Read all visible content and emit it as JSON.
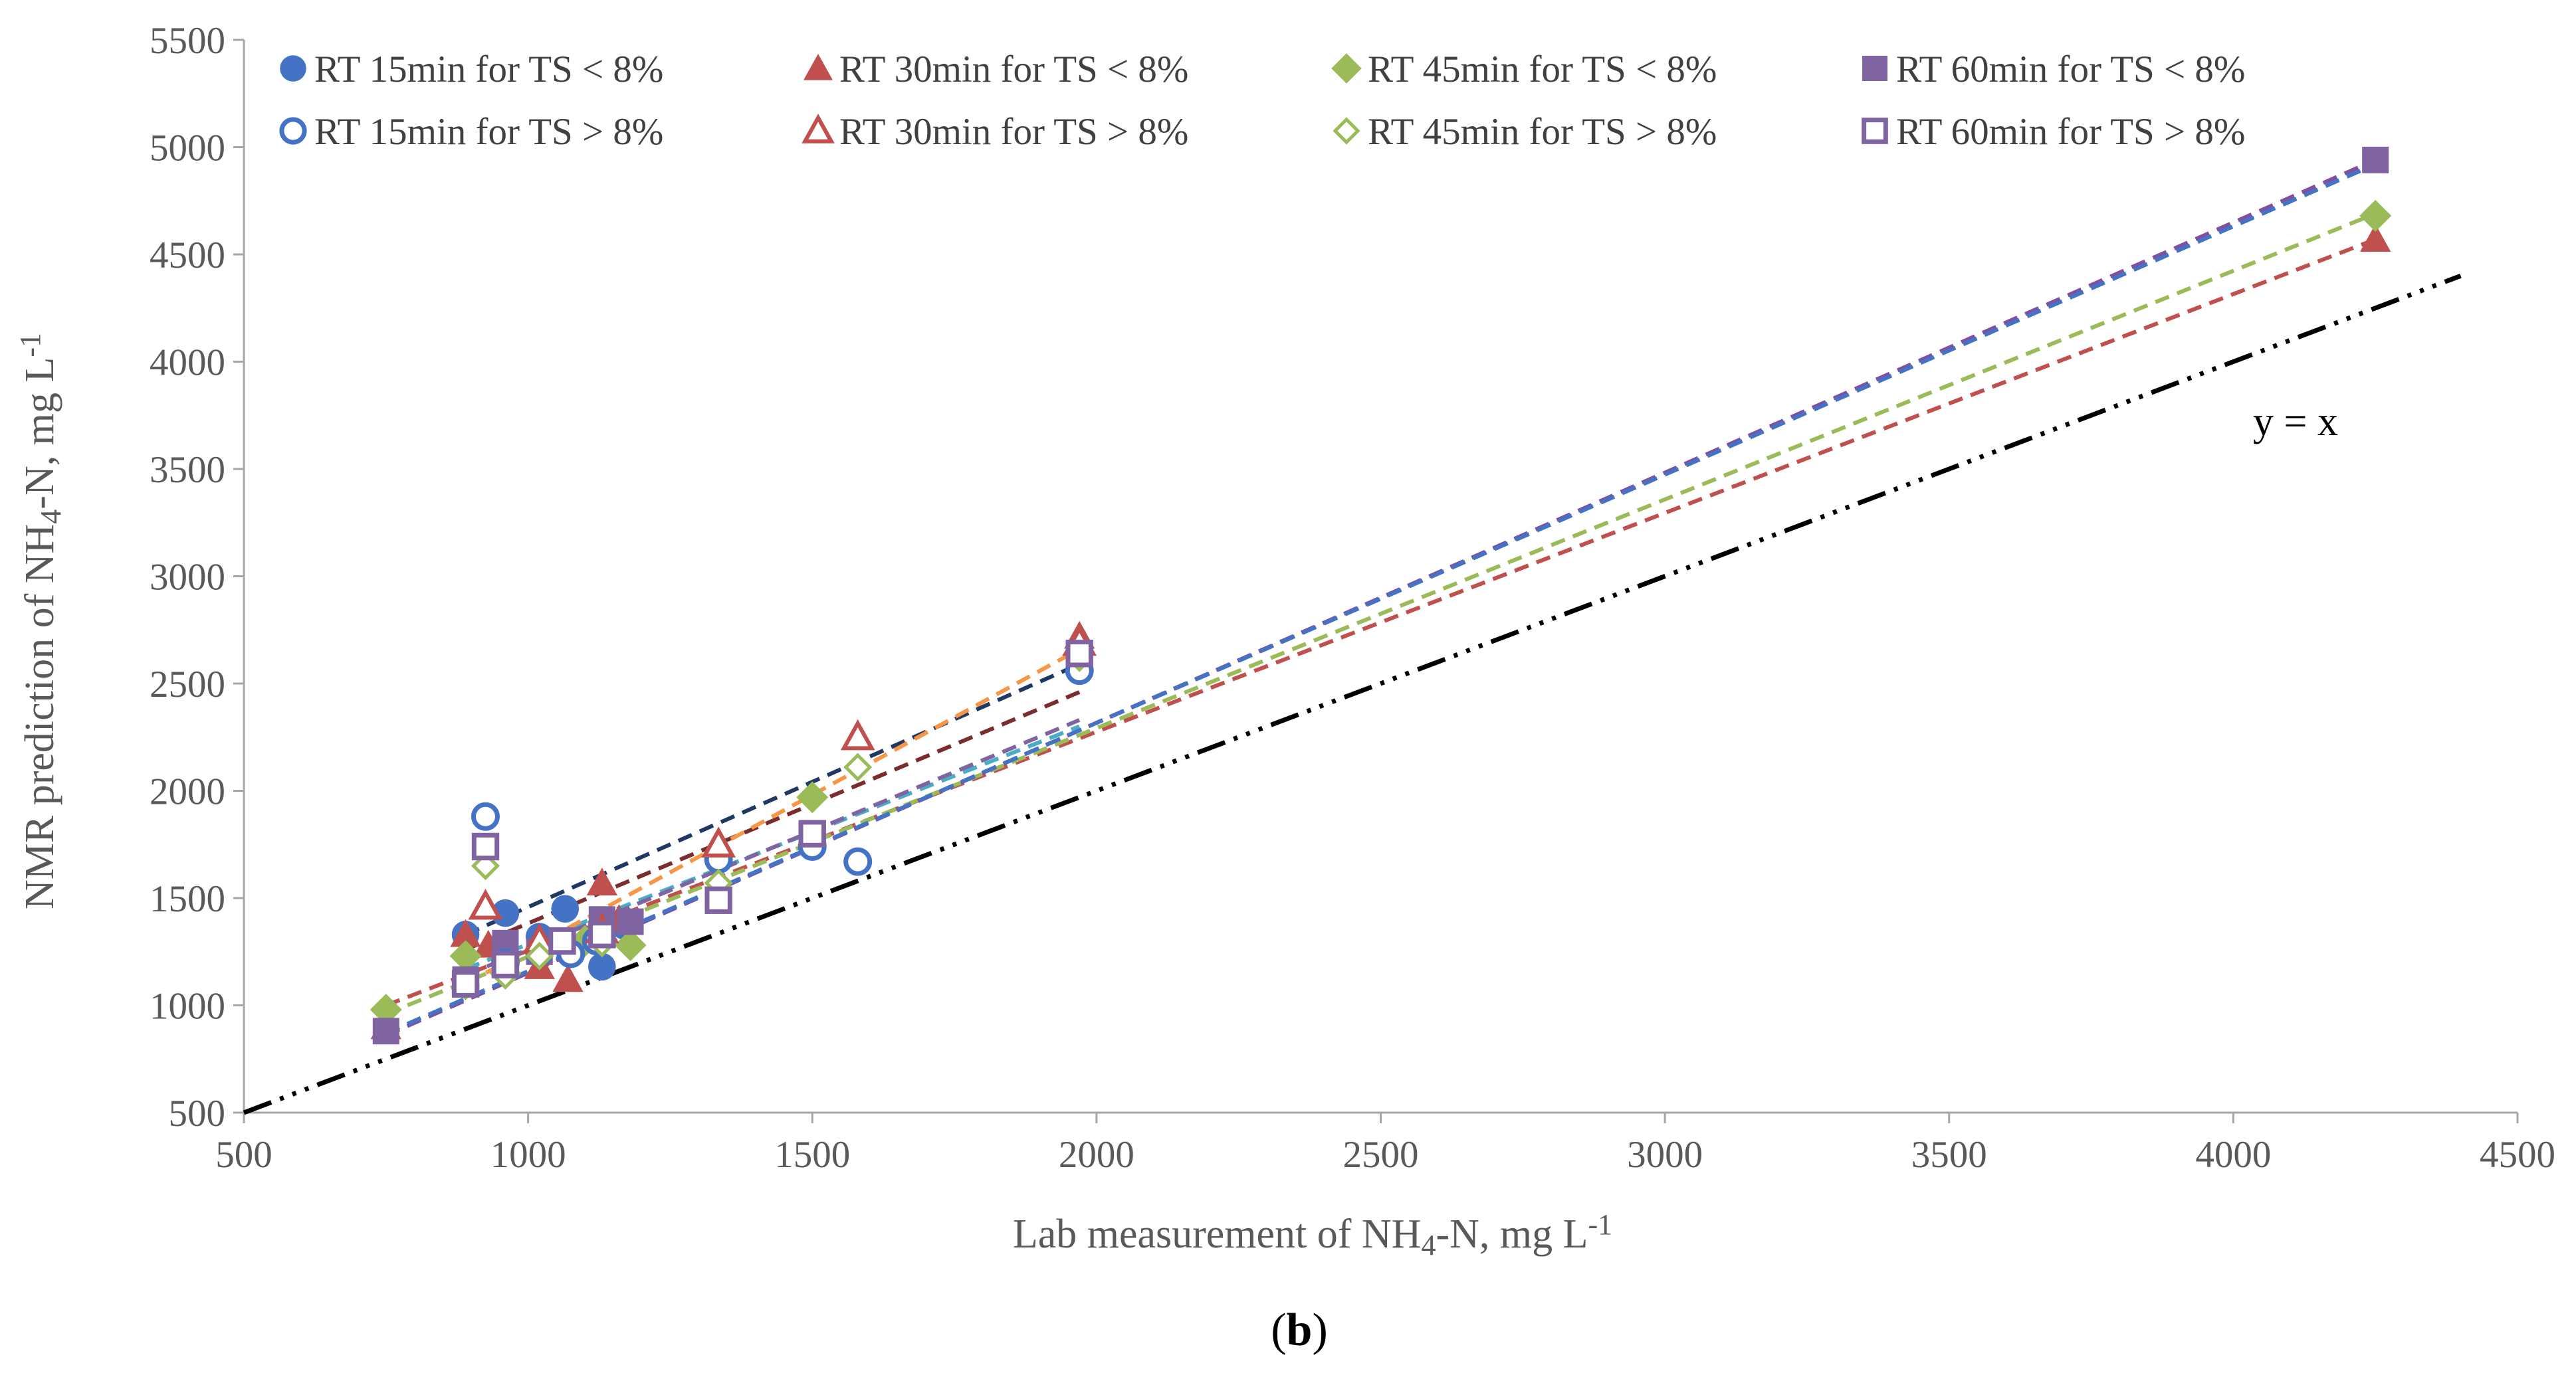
{
  "chart_data": {
    "type": "scatter",
    "title": "",
    "xlabel_parts": [
      "Lab measurement of NH",
      "4",
      "-N, mg L",
      "-1"
    ],
    "ylabel_parts": [
      "NMR prediction of NH",
      "4",
      "-N, mg L",
      "-1"
    ],
    "xlim": [
      500,
      4500
    ],
    "ylim": [
      500,
      5500
    ],
    "xticks": [
      500,
      1000,
      1500,
      2000,
      2500,
      3000,
      3500,
      4000,
      4500
    ],
    "yticks": [
      500,
      1000,
      1500,
      2000,
      2500,
      3000,
      3500,
      4000,
      4500,
      5000,
      5500
    ],
    "grid": false,
    "legend_position": "top",
    "panel_label_parts": [
      "(",
      "b",
      ")"
    ],
    "identity_line": {
      "label": "y = x",
      "color": "#000000",
      "from": [
        500,
        500
      ],
      "to": [
        4400,
        4400
      ]
    },
    "series": [
      {
        "name": "RT 15min for TS < 8%",
        "marker": "circle",
        "filled": true,
        "color": "#4472C4",
        "x": [
          890,
          960,
          1020,
          1065,
          1130,
          1170
        ],
        "y": [
          1330,
          1430,
          1320,
          1450,
          1180,
          1370
        ],
        "trend": {
          "color": "#1F3864",
          "x": [
            890,
            1970
          ],
          "y": [
            1330,
            2590
          ]
        }
      },
      {
        "name": "RT 30min for TS < 8%",
        "marker": "triangle",
        "filled": true,
        "color": "#C0504D",
        "x": [
          750,
          890,
          930,
          1020,
          1070,
          1130,
          1160,
          1970,
          4250
        ],
        "y": [
          900,
          1330,
          1280,
          1180,
          1120,
          1570,
          1400,
          2720,
          4570
        ],
        "trend": {
          "color": "#C0504D",
          "x": [
            750,
            4250
          ],
          "y": [
            1000,
            4570
          ]
        }
      },
      {
        "name": "RT 45min for TS < 8%",
        "marker": "diamond",
        "filled": true,
        "color": "#9BBB59",
        "x": [
          750,
          890,
          960,
          1020,
          1100,
          1180,
          1500,
          4250
        ],
        "y": [
          980,
          1230,
          1150,
          1250,
          1300,
          1280,
          1970,
          4680
        ],
        "trend": {
          "color": "#9BBB59",
          "x": [
            750,
            4250
          ],
          "y": [
            960,
            4690
          ]
        }
      },
      {
        "name": "RT 60min for TS < 8%",
        "marker": "square",
        "filled": true,
        "color": "#8064A2",
        "x": [
          750,
          890,
          960,
          1020,
          1130,
          1180,
          4250
        ],
        "y": [
          880,
          1120,
          1290,
          1250,
          1400,
          1390,
          4940
        ],
        "trend": {
          "color": "#7F4FA0",
          "x": [
            750,
            4250
          ],
          "y": [
            860,
            4940
          ]
        }
      },
      {
        "name": "RT 15min for TS > 8%",
        "marker": "circle",
        "filled": false,
        "color": "#4472C4",
        "x": [
          925,
          960,
          1020,
          1075,
          1120,
          1335,
          1500,
          1580,
          1970
        ],
        "y": [
          1880,
          1200,
          1250,
          1240,
          1300,
          1680,
          1740,
          1670,
          2560
        ],
        "trend": {
          "color": "#4BACC6",
          "x": [
            890,
            1970
          ],
          "y": [
            1170,
            2300
          ]
        }
      },
      {
        "name": "RT 30min for TS > 8%",
        "marker": "triangle",
        "filled": false,
        "color": "#C0504D",
        "x": [
          925,
          1020,
          1130,
          1335,
          1580,
          1970
        ],
        "y": [
          1460,
          1300,
          1350,
          1750,
          2250,
          2690
        ],
        "trend": {
          "color": "#7B2C2C",
          "x": [
            890,
            1970
          ],
          "y": [
            1260,
            2460
          ]
        }
      },
      {
        "name": "RT 45min for TS > 8%",
        "marker": "diamond",
        "filled": false,
        "color": "#9BBB59",
        "x": [
          890,
          925,
          960,
          1020,
          1130,
          1335,
          1580,
          1970
        ],
        "y": [
          1090,
          1650,
          1140,
          1230,
          1290,
          1570,
          2110,
          2620
        ],
        "trend": {
          "color": "#F79646",
          "x": [
            890,
            1970
          ],
          "y": [
            1100,
            2660
          ]
        }
      },
      {
        "name": "RT 60min for TS > 8%",
        "marker": "square",
        "filled": false,
        "color": "#8064A2",
        "x": [
          890,
          925,
          960,
          1060,
          1130,
          1335,
          1500,
          1970
        ],
        "y": [
          1100,
          1740,
          1190,
          1300,
          1330,
          1490,
          1800,
          2640
        ],
        "trend": {
          "color": "#8064A2",
          "x": [
            890,
            1970
          ],
          "y": [
            1140,
            2330
          ]
        }
      }
    ],
    "extra_trends": [
      {
        "color": "#4472C4",
        "x": [
          750,
          4250
        ],
        "y": [
          870,
          4920
        ]
      }
    ]
  }
}
